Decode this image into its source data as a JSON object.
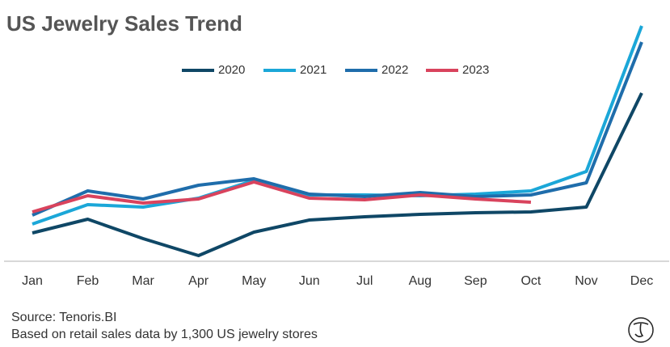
{
  "chart_data": {
    "type": "line",
    "title": "US Jewelry Sales Trend",
    "categories": [
      "Jan",
      "Feb",
      "Mar",
      "Apr",
      "May",
      "Jun",
      "Jul",
      "Aug",
      "Sep",
      "Oct",
      "Nov",
      "Dec"
    ],
    "series": [
      {
        "name": "2020",
        "color": "#0f4766",
        "values": [
          35,
          52,
          28,
          7,
          36,
          51,
          55,
          58,
          60,
          61,
          67,
          208
        ]
      },
      {
        "name": "2021",
        "color": "#1ba7d8",
        "values": [
          46,
          70,
          67,
          78,
          100,
          82,
          82,
          81,
          83,
          87,
          111,
          291
        ]
      },
      {
        "name": "2022",
        "color": "#1f6dab",
        "values": [
          57,
          87,
          77,
          94,
          102,
          83,
          80,
          85,
          80,
          82,
          97,
          271
        ]
      },
      {
        "name": "2023",
        "color": "#d9435d",
        "values": [
          61,
          81,
          72,
          77,
          98,
          78,
          76,
          82,
          77,
          73,
          null,
          null
        ]
      }
    ],
    "ylim": [
      0,
      300
    ],
    "source": "Source: Tenoris.BI",
    "note": "Based on retail sales data by 1,300 US jewelry stores"
  }
}
